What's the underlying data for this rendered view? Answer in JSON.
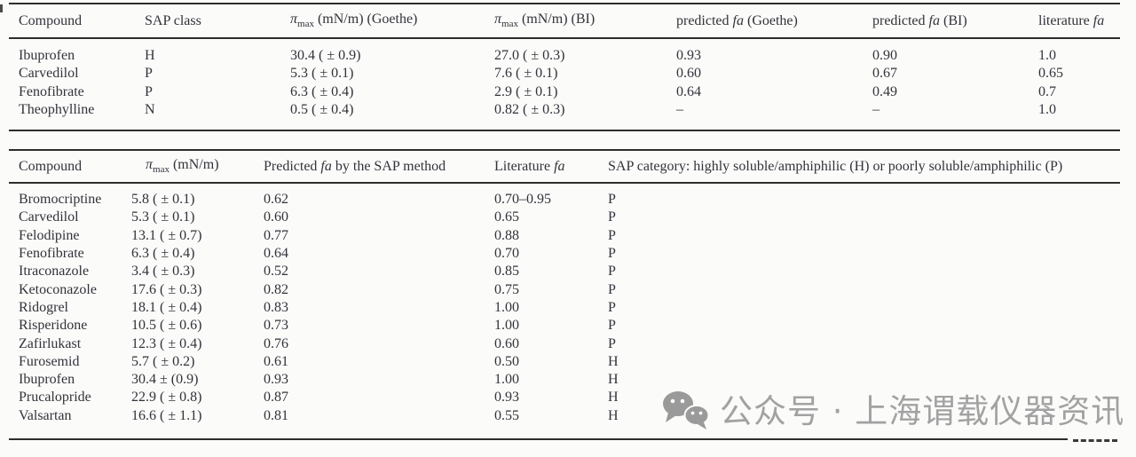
{
  "colors": {
    "background": "#fbfbfa",
    "text": "#32323a",
    "rule": "#2d2d2d",
    "watermark_gray": "#a2a2a2",
    "icon_gray": "#9a9a9a"
  },
  "tables": [
    {
      "id": "table1",
      "headers": [
        [
          {
            "t": "Compound",
            "style": "plain"
          }
        ],
        [
          {
            "t": "SAP class",
            "style": "plain"
          }
        ],
        [
          {
            "t": "π",
            "style": "italic"
          },
          {
            "t": "max",
            "style": "subscript"
          },
          {
            "t": " (mN/m) (Goethe)",
            "style": "plain"
          }
        ],
        [
          {
            "t": "π",
            "style": "italic"
          },
          {
            "t": "max",
            "style": "subscript"
          },
          {
            "t": " (mN/m) (BI)",
            "style": "plain"
          }
        ],
        [
          {
            "t": "predicted ",
            "style": "plain"
          },
          {
            "t": "fa",
            "style": "italic"
          },
          {
            "t": " (Goethe)",
            "style": "plain"
          }
        ],
        [
          {
            "t": "predicted ",
            "style": "plain"
          },
          {
            "t": "fa",
            "style": "italic"
          },
          {
            "t": " (BI)",
            "style": "plain"
          }
        ],
        [
          {
            "t": "literature ",
            "style": "plain"
          },
          {
            "t": "fa",
            "style": "italic"
          }
        ]
      ],
      "rows": [
        [
          "Ibuprofen",
          "H",
          "30.4 ( ± 0.9)",
          "27.0 ( ± 0.3)",
          "0.93",
          "0.90",
          "1.0"
        ],
        [
          "Carvedilol",
          "P",
          "5.3 ( ± 0.1)",
          "7.6 ( ± 0.1)",
          "0.60",
          "0.67",
          "0.65"
        ],
        [
          "Fenofibrate",
          "P",
          "6.3 ( ± 0.4)",
          "2.9 ( ± 0.1)",
          "0.64",
          "0.49",
          "0.7"
        ],
        [
          "Theophylline",
          "N",
          "0.5 ( ± 0.4)",
          "0.82 ( ± 0.3)",
          "–",
          "–",
          "1.0"
        ]
      ]
    },
    {
      "id": "table2",
      "headers": [
        [
          {
            "t": "Compound",
            "style": "plain"
          }
        ],
        [
          {
            "t": "π",
            "style": "italic"
          },
          {
            "t": "max",
            "style": "subscript"
          },
          {
            "t": " (mN/m)",
            "style": "plain"
          }
        ],
        [
          {
            "t": "Predicted ",
            "style": "plain"
          },
          {
            "t": "fa",
            "style": "italic"
          },
          {
            "t": " by the SAP method",
            "style": "plain"
          }
        ],
        [
          {
            "t": "Literature ",
            "style": "plain"
          },
          {
            "t": "fa",
            "style": "italic"
          }
        ],
        [
          {
            "t": "SAP category: highly soluble/amphiphilic (H) or poorly soluble/amphiphilic (P)",
            "style": "plain"
          }
        ]
      ],
      "rows": [
        [
          "Bromocriptine",
          "5.8 ( ± 0.1)",
          "0.62",
          "0.70–0.95",
          "P"
        ],
        [
          "Carvedilol",
          "5.3 ( ± 0.1)",
          "0.60",
          "0.65",
          "P"
        ],
        [
          "Felodipine",
          "13.1 ( ± 0.7)",
          "0.77",
          "0.88",
          "P"
        ],
        [
          "Fenofibrate",
          "6.3 ( ± 0.4)",
          "0.64",
          "0.70",
          "P"
        ],
        [
          "Itraconazole",
          "3.4 ( ± 0.3)",
          "0.52",
          "0.85",
          "P"
        ],
        [
          "Ketoconazole",
          "17.6 ( ± 0.3)",
          "0.82",
          "0.75",
          "P"
        ],
        [
          "Ridogrel",
          "18.1 ( ± 0.4)",
          "0.83",
          "1.00",
          "P"
        ],
        [
          "Risperidone",
          "10.5 ( ± 0.6)",
          "0.73",
          "1.00",
          "P"
        ],
        [
          "Zafirlukast",
          "12.3 ( ± 0.4)",
          "0.76",
          "0.60",
          "P"
        ],
        [
          "Furosemid",
          "5.7 ( ± 0.2)",
          "0.61",
          "0.50",
          "H"
        ],
        [
          "Ibuprofen",
          "30.4 ± (0.9)",
          "0.93",
          "1.00",
          "H"
        ],
        [
          "Prucalopride",
          "22.9 ( ± 0.8)",
          "0.87",
          "0.93",
          "H"
        ],
        [
          "Valsartan",
          "16.6 ( ± 1.1)",
          "0.81",
          "0.55",
          "H"
        ]
      ]
    }
  ],
  "watermark": {
    "icon": "wechat-icon",
    "text": "公众号 · 上海谓载仪器资讯"
  }
}
